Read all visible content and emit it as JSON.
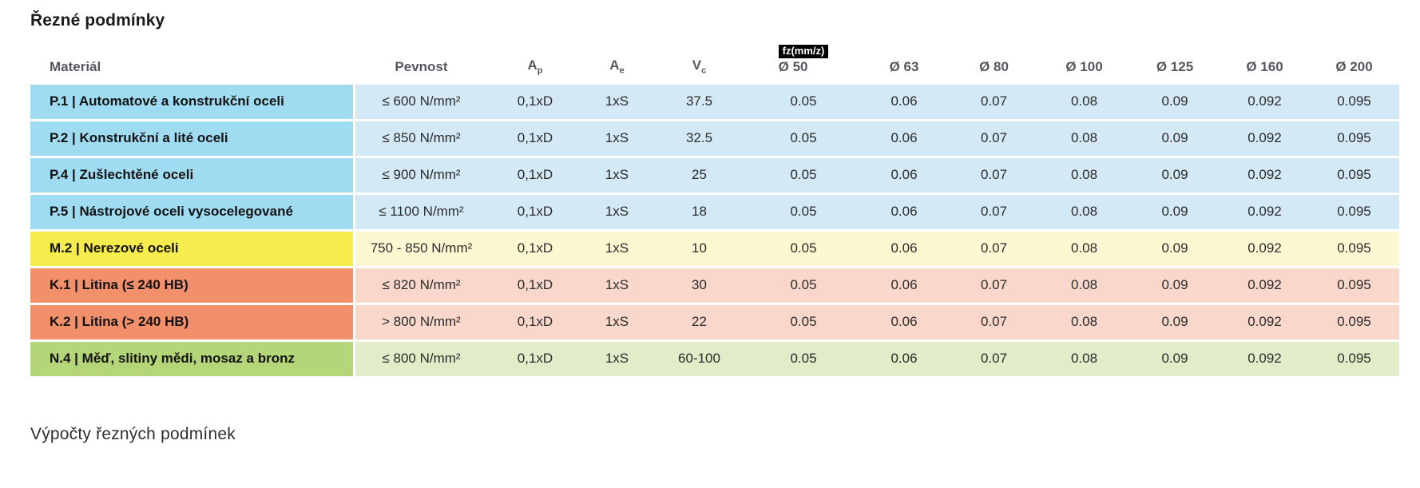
{
  "title": "Řezné podmínky",
  "footer_heading": "Výpočty řezných podmínek",
  "colors": {
    "p_label": "#9fdcf2",
    "p_row": "#d3eaf6",
    "m_label": "#f6ec4e",
    "m_row": "#fcf8d2",
    "k_label": "#f2906c",
    "k_row": "#f9d8cb",
    "n_label": "#b5d678",
    "n_row": "#e1ecc8",
    "header_text": "#54575c",
    "badge_bg": "#000000",
    "badge_text": "#ffffff"
  },
  "table": {
    "headers": {
      "material": "Materiál",
      "strength": "Pevnost",
      "ap_base": "A",
      "ap_sub": "p",
      "ae_base": "A",
      "ae_sub": "e",
      "vc_base": "V",
      "vc_sub": "c",
      "fz_badge": "fz(mm/z)",
      "diameters": [
        "Ø 50",
        "Ø 63",
        "Ø 80",
        "Ø 100",
        "Ø 125",
        "Ø 160",
        "Ø 200"
      ]
    },
    "rows": [
      {
        "group": "p",
        "material": "P.1 | Automatové a konstrukční oceli",
        "strength": "≤ 600 N/mm²",
        "ap": "0,1xD",
        "ae": "1xS",
        "vc": "37.5",
        "fz": [
          "0.05",
          "0.06",
          "0.07",
          "0.08",
          "0.09",
          "0.092",
          "0.095"
        ]
      },
      {
        "group": "p",
        "material": "P.2 | Konstrukční a lité oceli",
        "strength": "≤ 850 N/mm²",
        "ap": "0,1xD",
        "ae": "1xS",
        "vc": "32.5",
        "fz": [
          "0.05",
          "0.06",
          "0.07",
          "0.08",
          "0.09",
          "0.092",
          "0.095"
        ]
      },
      {
        "group": "p",
        "material": "P.4 | Zušlechtěné oceli",
        "strength": "≤ 900 N/mm²",
        "ap": "0,1xD",
        "ae": "1xS",
        "vc": "25",
        "fz": [
          "0.05",
          "0.06",
          "0.07",
          "0.08",
          "0.09",
          "0.092",
          "0.095"
        ]
      },
      {
        "group": "p",
        "material": "P.5 | Nástrojové oceli vysocelegované",
        "strength": "≤ 1100 N/mm²",
        "ap": "0,1xD",
        "ae": "1xS",
        "vc": "18",
        "fz": [
          "0.05",
          "0.06",
          "0.07",
          "0.08",
          "0.09",
          "0.092",
          "0.095"
        ]
      },
      {
        "group": "m",
        "material": "M.2 | Nerezové oceli",
        "strength": "750 - 850 N/mm²",
        "ap": "0,1xD",
        "ae": "1xS",
        "vc": "10",
        "fz": [
          "0.05",
          "0.06",
          "0.07",
          "0.08",
          "0.09",
          "0.092",
          "0.095"
        ]
      },
      {
        "group": "k",
        "material": "K.1 | Litina (≤ 240 HB)",
        "strength": "≤ 820 N/mm²",
        "ap": "0,1xD",
        "ae": "1xS",
        "vc": "30",
        "fz": [
          "0.05",
          "0.06",
          "0.07",
          "0.08",
          "0.09",
          "0.092",
          "0.095"
        ]
      },
      {
        "group": "k",
        "material": "K.2 | Litina (> 240 HB)",
        "strength": "> 800 N/mm²",
        "ap": "0,1xD",
        "ae": "1xS",
        "vc": "22",
        "fz": [
          "0.05",
          "0.06",
          "0.07",
          "0.08",
          "0.09",
          "0.092",
          "0.095"
        ]
      },
      {
        "group": "n",
        "material": "N.4 | Měď, slitiny mědi, mosaz a bronz",
        "strength": "≤ 800 N/mm²",
        "ap": "0,1xD",
        "ae": "1xS",
        "vc": "60-100",
        "fz": [
          "0.05",
          "0.06",
          "0.07",
          "0.08",
          "0.09",
          "0.092",
          "0.095"
        ]
      }
    ]
  },
  "chart_data": {
    "type": "table",
    "title": "Řezné podmínky",
    "columns": [
      "Materiál",
      "Pevnost",
      "Ap",
      "Ae",
      "Vc",
      "fz(mm/z) Ø 50",
      "Ø 63",
      "Ø 80",
      "Ø 100",
      "Ø 125",
      "Ø 160",
      "Ø 200"
    ],
    "rows": [
      [
        "P.1 | Automatové a konstrukční oceli",
        "≤ 600 N/mm²",
        "0,1xD",
        "1xS",
        "37.5",
        "0.05",
        "0.06",
        "0.07",
        "0.08",
        "0.09",
        "0.092",
        "0.095"
      ],
      [
        "P.2 | Konstrukční a lité oceli",
        "≤ 850 N/mm²",
        "0,1xD",
        "1xS",
        "32.5",
        "0.05",
        "0.06",
        "0.07",
        "0.08",
        "0.09",
        "0.092",
        "0.095"
      ],
      [
        "P.4 | Zušlechtěné oceli",
        "≤ 900 N/mm²",
        "0,1xD",
        "1xS",
        "25",
        "0.05",
        "0.06",
        "0.07",
        "0.08",
        "0.09",
        "0.092",
        "0.095"
      ],
      [
        "P.5 | Nástrojové oceli vysocelegované",
        "≤ 1100 N/mm²",
        "0,1xD",
        "1xS",
        "18",
        "0.05",
        "0.06",
        "0.07",
        "0.08",
        "0.09",
        "0.092",
        "0.095"
      ],
      [
        "M.2 | Nerezové oceli",
        "750 - 850 N/mm²",
        "0,1xD",
        "1xS",
        "10",
        "0.05",
        "0.06",
        "0.07",
        "0.08",
        "0.09",
        "0.092",
        "0.095"
      ],
      [
        "K.1 | Litina (≤ 240 HB)",
        "≤ 820 N/mm²",
        "0,1xD",
        "1xS",
        "30",
        "0.05",
        "0.06",
        "0.07",
        "0.08",
        "0.09",
        "0.092",
        "0.095"
      ],
      [
        "K.2 | Litina (> 240 HB)",
        "> 800 N/mm²",
        "0,1xD",
        "1xS",
        "22",
        "0.05",
        "0.06",
        "0.07",
        "0.08",
        "0.09",
        "0.092",
        "0.095"
      ],
      [
        "N.4 | Měď, slitiny mědi, mosaz a bronz",
        "≤ 800 N/mm²",
        "0,1xD",
        "1xS",
        "60-100",
        "0.05",
        "0.06",
        "0.07",
        "0.08",
        "0.09",
        "0.092",
        "0.095"
      ]
    ]
  }
}
